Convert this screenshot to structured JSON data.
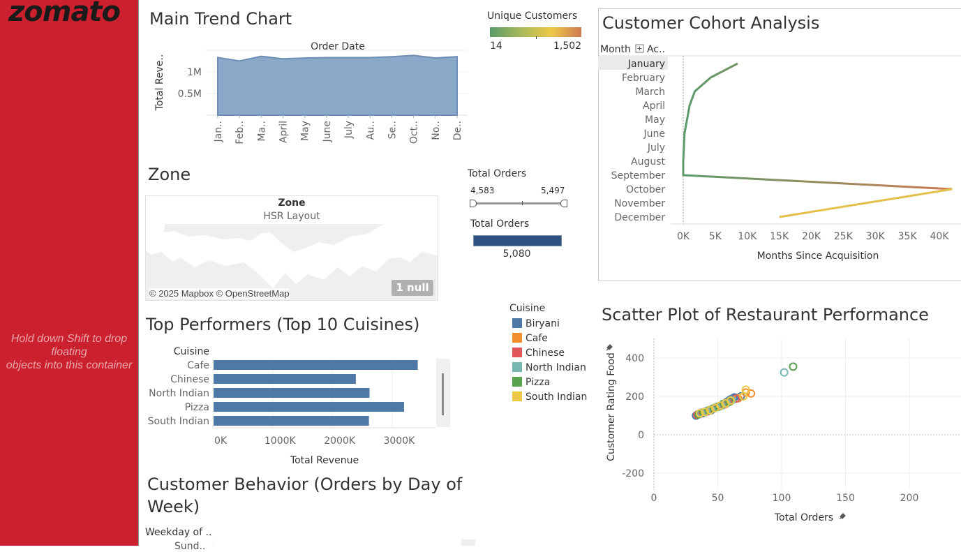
{
  "sidebar": {
    "logo": "zomato",
    "hint_lines": [
      "Hold down Shift to drop",
      "floating",
      "objects into this container"
    ]
  },
  "trend": {
    "title": "Main Trend Chart",
    "header": "Order Date",
    "ylabel": "Total Reve..",
    "ytick_labels": [
      "1M",
      "0.5M"
    ],
    "months": [
      "Jan..",
      "Feb..",
      "Ma..",
      "April",
      "May",
      "June",
      "July",
      "Au..",
      "Se..",
      "Oct..",
      "No..",
      "De.."
    ]
  },
  "unique_customers": {
    "title": "Unique Customers",
    "min": "14",
    "max": "1,502"
  },
  "zone": {
    "title": "Zone",
    "header": "Zone",
    "value": "HSR Layout",
    "attribution": "© 2025 Mapbox © OpenStreetMap",
    "null_badge": "1 null"
  },
  "total_orders_filter": {
    "title": "Total Orders",
    "min": "4,583",
    "max": "5,497"
  },
  "total_orders_card": {
    "title": "Total Orders",
    "value": "5,080"
  },
  "cohort": {
    "title": "Customer Cohort Analysis",
    "row_header": "Month",
    "col_header": "Ac..",
    "xlabel": "Months Since Acquisition",
    "xtick_labels": [
      "0K",
      "5K",
      "10K",
      "15K",
      "20K",
      "25K",
      "30K",
      "35K",
      "40K"
    ],
    "months": [
      "January",
      "February",
      "March",
      "April",
      "May",
      "June",
      "July",
      "August",
      "September",
      "October",
      "November",
      "December"
    ]
  },
  "top_performers": {
    "title": "Top Performers (Top 10 Cuisines)",
    "header": "Cuisine",
    "xlabel": "Total Revenue",
    "xtick_labels": [
      "0K",
      "1000K",
      "2000K",
      "3000K"
    ]
  },
  "cuisine_legend": {
    "title": "Cuisine",
    "items": [
      {
        "label": "Biryani",
        "color": "#4e79a7"
      },
      {
        "label": "Cafe",
        "color": "#f28e2b"
      },
      {
        "label": "Chinese",
        "color": "#e15759"
      },
      {
        "label": "North Indian",
        "color": "#76b7b2"
      },
      {
        "label": "Pizza",
        "color": "#59a14f"
      },
      {
        "label": "South Indian",
        "color": "#edc948"
      }
    ]
  },
  "scatter": {
    "title": "Scatter Plot of Restaurant Performance",
    "xlabel": "Total Orders",
    "ylabel": "Customer Rating Food",
    "xtick_labels": [
      "0",
      "50",
      "100",
      "150",
      "200"
    ],
    "ytick_labels": [
      "400",
      "200",
      "0",
      "-200"
    ]
  },
  "behavior": {
    "title_line1": "Customer Behavior (Orders by Day of",
    "title_line2": "Week)",
    "header": "Weekday of ..",
    "first_row": "Sund.."
  },
  "chart_data": [
    {
      "type": "area",
      "title": "Main Trend Chart",
      "xlabel": "Order Date",
      "ylabel": "Total Reve..",
      "categories": [
        "January",
        "February",
        "March",
        "April",
        "May",
        "June",
        "July",
        "August",
        "September",
        "October",
        "November",
        "December"
      ],
      "values": [
        1330000,
        1250000,
        1360000,
        1300000,
        1320000,
        1330000,
        1330000,
        1330000,
        1350000,
        1380000,
        1320000,
        1350000
      ],
      "ylim": [
        0,
        1450000
      ],
      "grid": true
    },
    {
      "type": "line",
      "title": "Customer Cohort Analysis",
      "xlabel": "Months Since Acquisition",
      "categories": [
        "January",
        "February",
        "March",
        "April",
        "May",
        "June",
        "July",
        "August",
        "September",
        "October",
        "November",
        "December"
      ],
      "values": [
        8500,
        4300,
        1800,
        1000,
        600,
        200,
        100,
        0,
        0,
        42000,
        29000,
        15000
      ],
      "xlim": [
        -1000,
        43000
      ],
      "color_scale": [
        "#5b9a6a",
        "#edc948",
        "#d07a52"
      ]
    },
    {
      "type": "bar",
      "orientation": "horizontal",
      "title": "Top Performers (Top 10 Cuisines)",
      "xlabel": "Total Revenue",
      "ylabel": "Cuisine",
      "categories": [
        "Cafe",
        "Chinese",
        "North Indian",
        "Pizza",
        "South Indian"
      ],
      "values": [
        3430000,
        2390000,
        2620000,
        3200000,
        2610000
      ],
      "xlim": [
        0,
        3700000
      ]
    },
    {
      "type": "scatter",
      "title": "Scatter Plot of Restaurant Performance",
      "xlabel": "Total Orders",
      "ylabel": "Customer Rating Food",
      "xlim": [
        0,
        240
      ],
      "ylim": [
        -250,
        450
      ],
      "series": [
        {
          "name": "Biryani",
          "points": [
            [
              33,
              100
            ],
            [
              38,
              112
            ],
            [
              42,
              125
            ],
            [
              46,
              135
            ],
            [
              50,
              145
            ],
            [
              54,
              160
            ],
            [
              58,
              175
            ],
            [
              62,
              190
            ],
            [
              35,
              108
            ],
            [
              45,
              128
            ],
            [
              55,
              158
            ],
            [
              60,
              185
            ],
            [
              40,
              118
            ],
            [
              48,
              140
            ],
            [
              52,
              150
            ],
            [
              57,
              170
            ],
            [
              63,
              195
            ],
            [
              68,
              200
            ]
          ]
        },
        {
          "name": "Cafe",
          "points": [
            [
              36,
              110
            ],
            [
              44,
              130
            ],
            [
              52,
              150
            ],
            [
              60,
              175
            ],
            [
              66,
              190
            ],
            [
              72,
              220
            ],
            [
              76,
              215
            ],
            [
              40,
              120
            ],
            [
              48,
              142
            ],
            [
              56,
              160
            ]
          ]
        },
        {
          "name": "Chinese",
          "points": [
            [
              34,
              104
            ],
            [
              42,
              122
            ],
            [
              50,
              146
            ],
            [
              58,
              170
            ],
            [
              64,
              188
            ],
            [
              38,
              114
            ],
            [
              46,
              136
            ],
            [
              54,
              155
            ]
          ]
        },
        {
          "name": "North Indian",
          "points": [
            [
              37,
              115
            ],
            [
              45,
              132
            ],
            [
              53,
              152
            ],
            [
              61,
              180
            ],
            [
              102,
              325
            ],
            [
              41,
              124
            ],
            [
              49,
              144
            ],
            [
              57,
              165
            ]
          ]
        },
        {
          "name": "Pizza",
          "points": [
            [
              35,
              106
            ],
            [
              43,
              126
            ],
            [
              51,
              148
            ],
            [
              59,
              172
            ],
            [
              109,
              355
            ],
            [
              39,
              116
            ],
            [
              47,
              138
            ],
            [
              55,
              162
            ]
          ]
        },
        {
          "name": "South Indian",
          "points": [
            [
              36,
              112
            ],
            [
              44,
              128
            ],
            [
              52,
              152
            ],
            [
              60,
              178
            ],
            [
              70,
              200
            ],
            [
              72,
              235
            ],
            [
              40,
              119
            ],
            [
              48,
              139
            ],
            [
              56,
              163
            ]
          ]
        }
      ]
    }
  ]
}
